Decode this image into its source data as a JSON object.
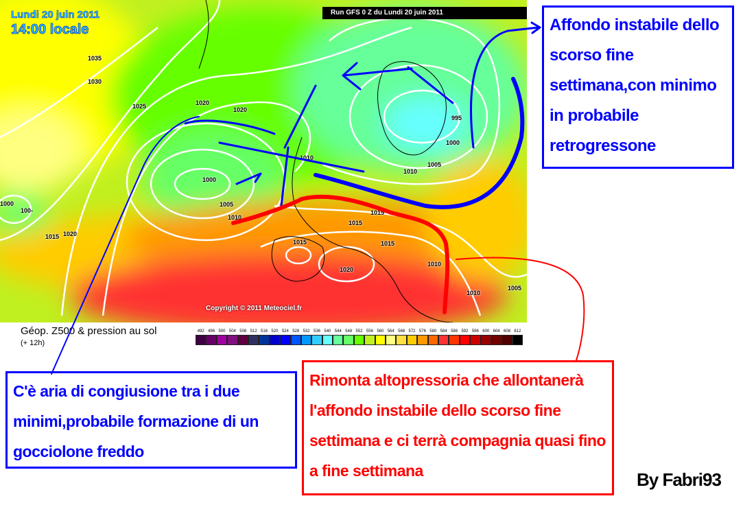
{
  "map": {
    "date": "Lundi 20 juin 2011",
    "time": "14:00 locale",
    "run": "Run GFS 0 Z du Lundi 20 juin 2011",
    "copyright": "Copyright © 2011 Meteociel.fr",
    "isobar_labels": [
      "1035",
      "1030",
      "1025",
      "1020",
      "1020",
      "1000",
      "1005",
      "1010",
      "1000",
      "100-",
      "1015",
      "1020",
      "1010",
      "995",
      "1000",
      "1005",
      "1010",
      "1015",
      "1015",
      "1015",
      "1015",
      "1020",
      "1010",
      "1010",
      "1005"
    ]
  },
  "legend": {
    "title": "Géop. Z500 & pression au sol",
    "subtitle": "(+ 12h)",
    "values": [
      "492",
      "496",
      "500",
      "504",
      "508",
      "512",
      "516",
      "520",
      "524",
      "528",
      "532",
      "536",
      "540",
      "544",
      "548",
      "552",
      "556",
      "560",
      "564",
      "568",
      "572",
      "576",
      "580",
      "584",
      "588",
      "592",
      "596",
      "600",
      "604",
      "608",
      "612"
    ],
    "colors": [
      "#3f0040",
      "#660066",
      "#a000a0",
      "#801080",
      "#600040",
      "#303060",
      "#003399",
      "#0000cc",
      "#0000ff",
      "#0055ff",
      "#0099ff",
      "#33ccff",
      "#66ffff",
      "#66ff99",
      "#66ff66",
      "#66ff00",
      "#c0f020",
      "#ffff00",
      "#ffff80",
      "#ffe040",
      "#ffcc00",
      "#ff9900",
      "#ff6600",
      "#ff3333",
      "#ff3300",
      "#ff0000",
      "#cc0000",
      "#990000",
      "#700000",
      "#500000",
      "#000000"
    ]
  },
  "annotations": {
    "top_right": "Affondo instabile dello scorso fine settimana,con minimo in probabile retrogressone",
    "bottom_left": "C'è aria di congiusione tra i due minimi,probabile formazione di un gocciolone freddo",
    "bottom_right": "Rimonta altopressoria che allontanerà l'affondo instabile dello scorso fine settimana e ci terrà compagnia quasi fino a fine settimana",
    "signature": "By Fabri93",
    "colors": {
      "blue": "#0000ff",
      "red": "#ff0000"
    }
  }
}
